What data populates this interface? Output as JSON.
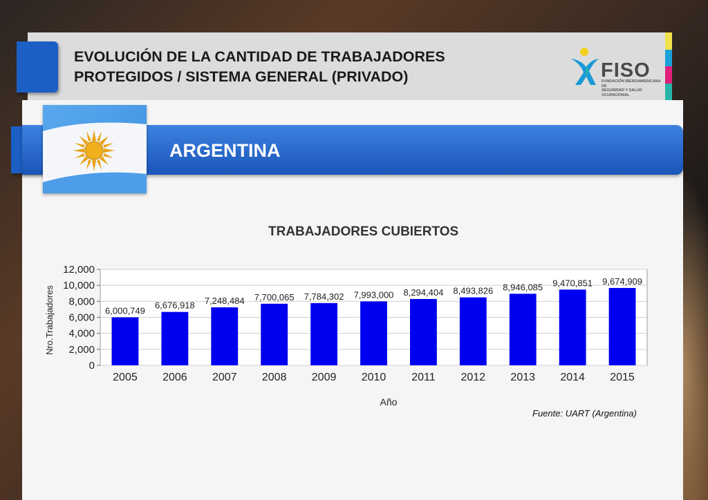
{
  "header": {
    "title_line1": "EVOLUCIÓN DE LA CANTIDAD DE TRABAJADORES",
    "title_line2": "PROTEGIDOS / SISTEMA GENERAL (PRIVADO)"
  },
  "logo": {
    "name": "FISO",
    "subtitle_line1": "FUNDACIÓN IBEROAMERICANA DE",
    "subtitle_line2": "SEGURIDAD Y SALUD OCUPACIONAL",
    "stripe_colors": [
      "#f2e14c",
      "#1aa0d8",
      "#e0207a",
      "#27b5a9"
    ]
  },
  "country": {
    "name": "ARGENTINA"
  },
  "colors": {
    "bar": "#0000f0",
    "accent": "#1b5fc4"
  },
  "chart_data": {
    "type": "bar",
    "title": "TRABAJADORES CUBIERTOS",
    "xlabel": "Año",
    "ylabel": "Nro.Trabajadores",
    "ylim": [
      0,
      12000
    ],
    "yticks": [
      0,
      2000,
      4000,
      6000,
      8000,
      10000,
      12000
    ],
    "ytick_labels": [
      "0",
      "2,000",
      "4,000",
      "6,000",
      "8,000",
      "10,000",
      "12,000"
    ],
    "categories": [
      "2005",
      "2006",
      "2007",
      "2008",
      "2009",
      "2010",
      "2011",
      "2012",
      "2013",
      "2014",
      "2015"
    ],
    "values": [
      6000749,
      6676918,
      7248484,
      7700065,
      7784302,
      7993000,
      8294404,
      8493826,
      8946085,
      9470851,
      9674909
    ],
    "value_labels": [
      "6,000,749",
      "6,676,918",
      "7,248,484",
      "7,700,065",
      "7,784,302",
      "7,993,000",
      "8,294,404",
      "8,493,826",
      "8,946,085",
      "9,470,851",
      "9,674,909"
    ],
    "grid": true
  },
  "source": "Fuente: UART (Argentina)"
}
